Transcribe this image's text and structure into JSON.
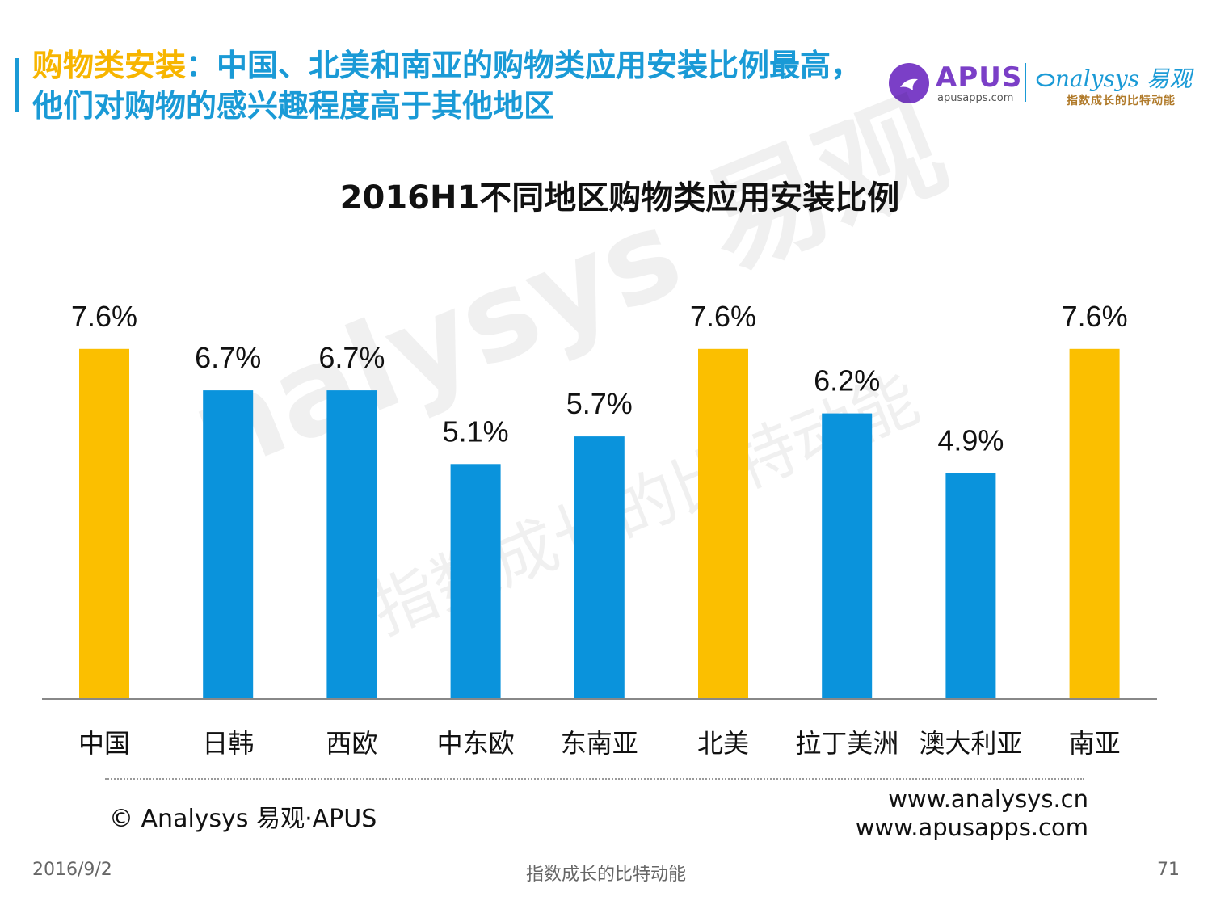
{
  "header": {
    "headline_highlight": "购物类安装",
    "headline_rest": "：中国、北美和南亚的购物类应用安装比例最高，他们对购物的感兴趣程度高于其他地区"
  },
  "logos": {
    "apus_name": "APUS",
    "apus_url": "apusapps.com",
    "analysys_name": "nalysys 易观",
    "analysys_tagline": "指数成长的比特动能"
  },
  "watermark": {
    "main": "nalysys 易观",
    "sub": "指数成长的比特动能"
  },
  "chart_data": {
    "type": "bar",
    "title": "2016H1不同地区购物类应用安装比例",
    "categories": [
      "中国",
      "日韩",
      "西欧",
      "中东欧",
      "东南亚",
      "北美",
      "拉丁美洲",
      "澳大利亚",
      "南亚"
    ],
    "values": [
      7.6,
      6.7,
      6.7,
      5.1,
      5.7,
      7.6,
      6.2,
      4.9,
      7.6
    ],
    "value_labels": [
      "7.6%",
      "6.7%",
      "6.7%",
      "5.1%",
      "5.7%",
      "7.6%",
      "6.2%",
      "4.9%",
      "7.6%"
    ],
    "highlight": [
      true,
      false,
      false,
      false,
      false,
      true,
      false,
      false,
      true
    ],
    "colors": {
      "highlight": "#FBBF00",
      "normal": "#0A93DC",
      "axis": "#888888"
    },
    "ylim": [
      0,
      8
    ],
    "grid": false,
    "legend": "none"
  },
  "source": {
    "copyright": "© Analysys 易观·APUS",
    "url1": "www.analysys.cn",
    "url2": "www.apusapps.com"
  },
  "footer": {
    "date": "2016/9/2",
    "tagline": "指数成长的比特动能",
    "page": "71"
  }
}
